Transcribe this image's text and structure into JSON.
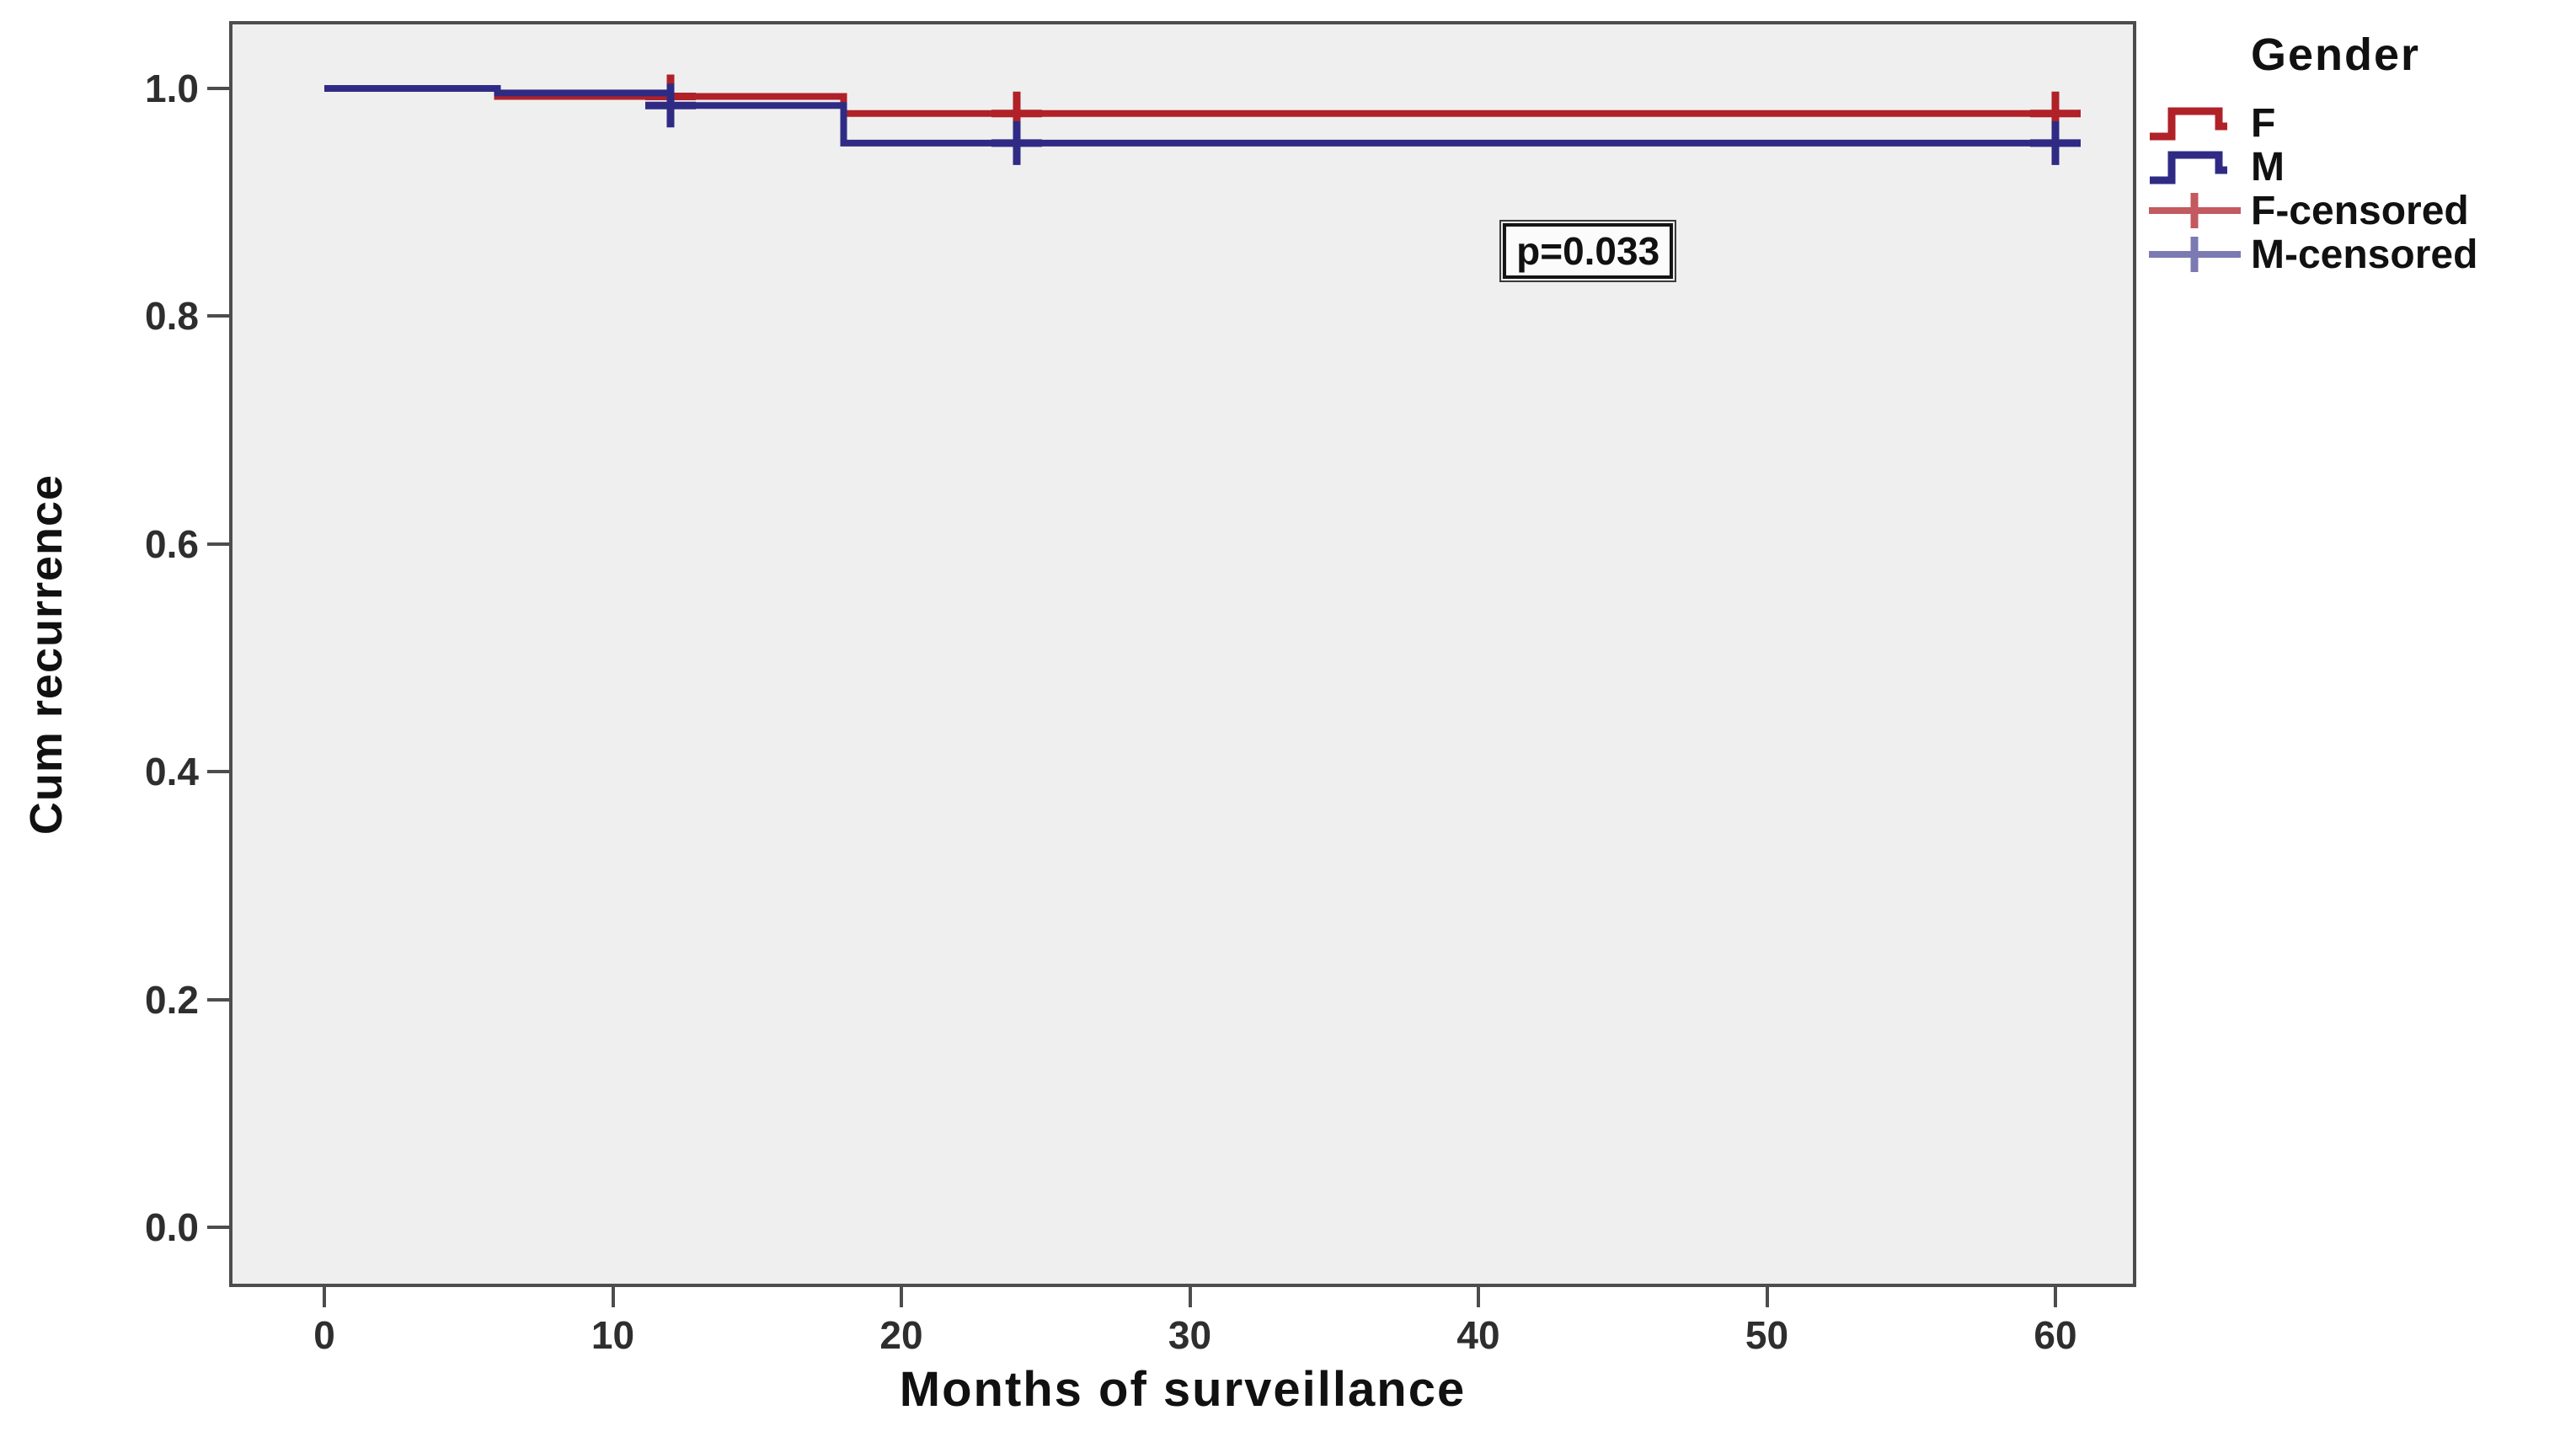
{
  "chart_data": {
    "type": "line",
    "subtype": "kaplan_meier_step",
    "title": "",
    "xlabel": "Months of surveillance",
    "ylabel": "Cum recurrence",
    "xlim": [
      0,
      60
    ],
    "ylim": [
      0.0,
      1.0
    ],
    "grid": false,
    "plot_background": "#efefef",
    "frame_color": "#4d4d4d",
    "tick_color": "#4d4d4d",
    "x_ticks": [
      {
        "v": 0,
        "label": "0"
      },
      {
        "v": 10,
        "label": "10"
      },
      {
        "v": 20,
        "label": "20"
      },
      {
        "v": 30,
        "label": "30"
      },
      {
        "v": 40,
        "label": "40"
      },
      {
        "v": 50,
        "label": "50"
      },
      {
        "v": 60,
        "label": "60"
      }
    ],
    "y_ticks": [
      {
        "v": 1.0,
        "label": "1.0"
      },
      {
        "v": 0.8,
        "label": "0.8"
      },
      {
        "v": 0.6,
        "label": "0.6"
      },
      {
        "v": 0.4,
        "label": "0.4"
      },
      {
        "v": 0.2,
        "label": "0.2"
      },
      {
        "v": 0.0,
        "label": "0.0"
      }
    ],
    "annotation": {
      "text": "p=0.033",
      "x": 43.8,
      "y": 0.857
    },
    "legend": {
      "title": "Gender",
      "position": "right",
      "items": [
        {
          "label": "F",
          "swatch": "step-line",
          "color": "#b02128"
        },
        {
          "label": "M",
          "swatch": "step-line",
          "color": "#2f2b85"
        },
        {
          "label": "F-censored",
          "swatch": "censor-plus",
          "color": "#c25a60"
        },
        {
          "label": "M-censored",
          "swatch": "censor-plus",
          "color": "#7b7ab2"
        }
      ]
    },
    "series": [
      {
        "name": "F",
        "color": "#b02128",
        "line_width": 8,
        "steps": [
          [
            0,
            1.0
          ],
          [
            6,
            0.993
          ],
          [
            18,
            0.978
          ],
          [
            60,
            0.978
          ]
        ],
        "censored": [
          [
            12,
            0.993
          ],
          [
            24,
            0.978
          ],
          [
            60,
            0.978
          ]
        ]
      },
      {
        "name": "M",
        "color": "#2f2b85",
        "line_width": 8,
        "steps": [
          [
            0,
            1.0
          ],
          [
            6,
            0.996
          ],
          [
            12,
            0.985
          ],
          [
            18,
            0.952
          ],
          [
            60,
            0.952
          ]
        ],
        "censored": [
          [
            12,
            0.985
          ],
          [
            24,
            0.952
          ],
          [
            60,
            0.952
          ]
        ]
      }
    ]
  }
}
